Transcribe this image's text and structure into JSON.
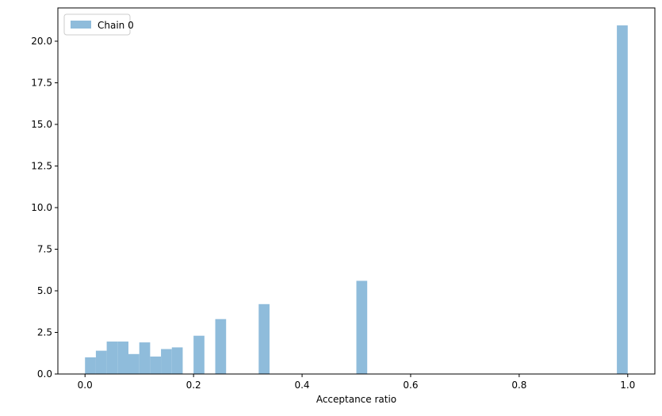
{
  "chart_data": {
    "type": "bar",
    "xlabel": "Acceptance ratio",
    "ylabel": "",
    "xlim": [
      -0.05,
      1.05
    ],
    "ylim": [
      0,
      22.0
    ],
    "grid": false,
    "legend_position": "top-left",
    "bin_width": 0.02,
    "x_ticks": [
      "0.0",
      "0.2",
      "0.4",
      "0.6",
      "0.8",
      "1.0"
    ],
    "y_ticks": [
      "0.0",
      "2.5",
      "5.0",
      "7.5",
      "10.0",
      "12.5",
      "15.0",
      "17.5",
      "20.0"
    ],
    "series": [
      {
        "name": "Chain 0",
        "color": "#8fbcdb",
        "bins": [
          {
            "x0": 0.0,
            "x1": 0.02,
            "value": 1.0
          },
          {
            "x0": 0.02,
            "x1": 0.04,
            "value": 1.4
          },
          {
            "x0": 0.04,
            "x1": 0.06,
            "value": 1.95
          },
          {
            "x0": 0.06,
            "x1": 0.08,
            "value": 1.95
          },
          {
            "x0": 0.08,
            "x1": 0.1,
            "value": 1.2
          },
          {
            "x0": 0.1,
            "x1": 0.12,
            "value": 1.9
          },
          {
            "x0": 0.12,
            "x1": 0.14,
            "value": 1.05
          },
          {
            "x0": 0.14,
            "x1": 0.16,
            "value": 1.5
          },
          {
            "x0": 0.16,
            "x1": 0.18,
            "value": 1.6
          },
          {
            "x0": 0.2,
            "x1": 0.22,
            "value": 2.3
          },
          {
            "x0": 0.24,
            "x1": 0.26,
            "value": 3.3
          },
          {
            "x0": 0.32,
            "x1": 0.34,
            "value": 4.2
          },
          {
            "x0": 0.5,
            "x1": 0.52,
            "value": 5.6
          },
          {
            "x0": 0.98,
            "x1": 1.0,
            "value": 20.95
          }
        ]
      }
    ]
  }
}
